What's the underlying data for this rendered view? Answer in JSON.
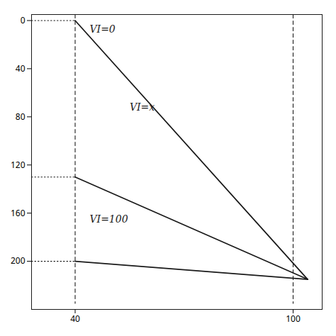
{
  "chart_data": {
    "type": "line",
    "color": "#1a1a1a",
    "series": [
      {
        "x": [
          40,
          104
        ],
        "values": [
          0,
          215
        ],
        "line_style": "solid"
      },
      {
        "x": [
          40,
          104
        ],
        "values": [
          130,
          215
        ],
        "line_style": "solid"
      },
      {
        "x": [
          40,
          104
        ],
        "values": [
          200,
          215
        ],
        "line_style": "solid"
      },
      {
        "x": [
          28,
          40
        ],
        "values": [
          0,
          0
        ],
        "line_style": "dotted"
      },
      {
        "x": [
          28,
          40
        ],
        "values": [
          130,
          130
        ],
        "line_style": "dotted"
      },
      {
        "x": [
          28,
          40
        ],
        "values": [
          200,
          200
        ],
        "line_style": "dotted"
      },
      {
        "x": [
          40,
          40
        ],
        "values": [
          -5,
          235
        ],
        "line_style": "dashed"
      },
      {
        "x": [
          100,
          100
        ],
        "values": [
          -5,
          235
        ],
        "line_style": "dashed"
      }
    ],
    "annotations": [
      {
        "text": "VI=0",
        "x": 44,
        "y": 10
      },
      {
        "text": "VI=x",
        "x": 55,
        "y": 75
      },
      {
        "text": "VI=100",
        "x": 44,
        "y": 168
      }
    ],
    "xlim": [
      28,
      108
    ],
    "ylim": [
      240,
      -5
    ],
    "xticks": [
      40,
      100
    ],
    "yticks": [
      0,
      40,
      80,
      120,
      160,
      200
    ],
    "grid": false
  }
}
